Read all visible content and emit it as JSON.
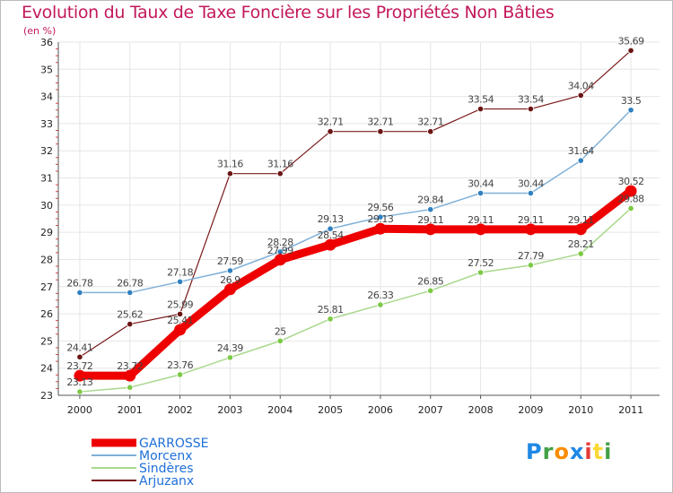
{
  "header": {
    "title": "Evolution du Taux de Taxe Foncière sur les Propriétés Non Bâties",
    "subtitle": "(en %)"
  },
  "logo": {
    "text": "Proxiti",
    "letters": [
      {
        "ch": "P",
        "color": "#1e88e5"
      },
      {
        "ch": "r",
        "color": "#43a047"
      },
      {
        "ch": "o",
        "color": "#fb8c00"
      },
      {
        "ch": "x",
        "color": "#1e88e5"
      },
      {
        "ch": "i",
        "color": "#e53935"
      },
      {
        "ch": "t",
        "color": "#fdd835"
      },
      {
        "ch": "i",
        "color": "#43a047"
      }
    ]
  },
  "chart_data": {
    "type": "line",
    "title": "Evolution du Taux de Taxe Foncière sur les Propriétés Non Bâties",
    "ylabel": "(en %)",
    "xlabel": "",
    "x": [
      "2000",
      "2001",
      "2002",
      "2003",
      "2004",
      "2005",
      "2006",
      "2007",
      "2008",
      "2009",
      "2010",
      "2011"
    ],
    "ylim": [
      23,
      36
    ],
    "yticks": [
      23,
      24,
      25,
      26,
      27,
      28,
      29,
      30,
      31,
      32,
      33,
      34,
      35,
      36
    ],
    "grid": true,
    "legend_position": "bottom-left",
    "series": [
      {
        "name": "Arjuzanx",
        "color": "#7b1a1a",
        "marker": "#6b1414",
        "width": 1.2,
        "values": [
          24.41,
          25.62,
          25.99,
          31.16,
          31.16,
          32.71,
          32.71,
          32.71,
          33.54,
          33.54,
          34.04,
          35.69
        ],
        "labels": [
          "24.41",
          "25.62",
          "25.99",
          "31.16",
          "31.16",
          "32.71",
          "32.71",
          "32.71",
          "33.54",
          "33.54",
          "34.04",
          "35.69"
        ]
      },
      {
        "name": "Morcenx",
        "color": "#7fb0d8",
        "marker": "#2f80c0",
        "width": 1.5,
        "values": [
          26.78,
          26.78,
          27.18,
          27.59,
          28.28,
          29.13,
          29.56,
          29.84,
          30.44,
          30.44,
          31.64,
          33.5
        ],
        "labels": [
          "26.78",
          "26.78",
          "27.18",
          "27.59",
          "28.28",
          "29.13",
          "29.56",
          "29.84",
          "30.44",
          "30.44",
          "31.64",
          "33.5"
        ]
      },
      {
        "name": "Sindères",
        "color": "#a8d88c",
        "marker": "#7cc944",
        "width": 1.5,
        "values": [
          23.13,
          23.29,
          23.76,
          24.39,
          25,
          25.81,
          26.33,
          26.85,
          27.52,
          27.79,
          28.21,
          29.88
        ],
        "labels": [
          "23.13",
          "",
          "23.76",
          "24.39",
          "25",
          "25.81",
          "26.33",
          "26.85",
          "27.52",
          "27.79",
          "28.21",
          "29.88"
        ]
      },
      {
        "name": "GARROSSE",
        "color": "#ee0000",
        "marker": "#ee0000",
        "width": 9,
        "values": [
          23.72,
          23.72,
          25.41,
          26.9,
          27.99,
          28.54,
          29.13,
          29.11,
          29.11,
          29.11,
          29.11,
          30.52
        ],
        "labels": [
          "23.72",
          "23.72",
          "25.41",
          "26.9",
          "27.99",
          "28.54",
          "29.13",
          "29.11",
          "29.11",
          "29.11",
          "29.11",
          "30.52"
        ]
      }
    ],
    "legend": [
      {
        "name": "GARROSSE",
        "color": "#ee0000",
        "text_color": "#1e6fd9",
        "width": 9
      },
      {
        "name": "Morcenx",
        "color": "#7fb0d8",
        "text_color": "#1e6fd9",
        "width": 2
      },
      {
        "name": "Sindères",
        "color": "#a8d88c",
        "text_color": "#1e6fd9",
        "width": 2
      },
      {
        "name": "Arjuzanx",
        "color": "#7b1a1a",
        "text_color": "#1e6fd9",
        "width": 2
      }
    ]
  }
}
